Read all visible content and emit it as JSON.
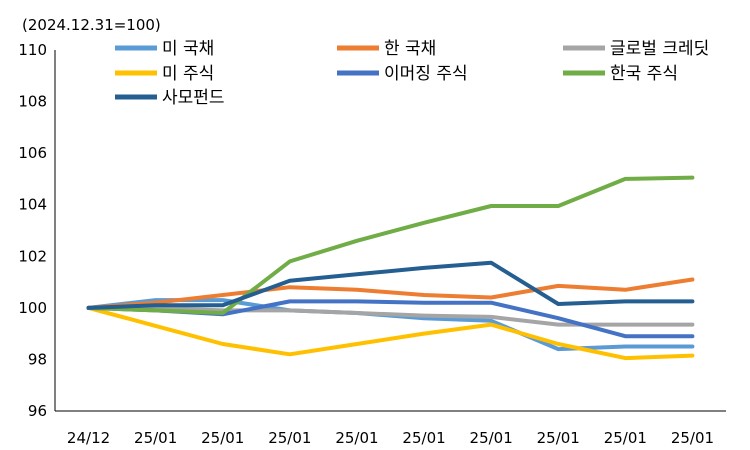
{
  "chart_data": {
    "type": "line",
    "title": "",
    "unit_label": "(2024.12.31=100)",
    "xlabel": "",
    "ylabel": "",
    "categories": [
      "24/12",
      "25/01",
      "25/01",
      "25/01",
      "25/01",
      "25/01",
      "25/01",
      "25/01",
      "25/01",
      "25/01"
    ],
    "ylim": [
      96,
      110
    ],
    "yticks": [
      96,
      98,
      100,
      102,
      104,
      106,
      108,
      110
    ],
    "grid": false,
    "series": [
      {
        "name": "미 국채",
        "color": "#5B9BD5",
        "values": [
          100,
          100.3,
          100.3,
          99.9,
          99.8,
          99.6,
          99.5,
          98.4,
          98.5,
          98.5
        ]
      },
      {
        "name": "한 국채",
        "color": "#ED7D31",
        "values": [
          100,
          100.2,
          100.5,
          100.8,
          100.7,
          100.5,
          100.4,
          100.85,
          100.7,
          101.1
        ]
      },
      {
        "name": "글로벌 크레딧",
        "color": "#A5A5A5",
        "values": [
          100,
          100.0,
          99.9,
          99.9,
          99.8,
          99.7,
          99.65,
          99.35,
          99.35,
          99.35
        ]
      },
      {
        "name": "미 주식",
        "color": "#FFC000",
        "values": [
          100,
          99.3,
          98.6,
          98.2,
          98.6,
          99.0,
          99.35,
          98.6,
          98.05,
          98.15
        ]
      },
      {
        "name": "이머징 주식",
        "color": "#4472C4",
        "values": [
          100,
          99.9,
          99.75,
          100.25,
          100.25,
          100.2,
          100.2,
          99.6,
          98.9,
          98.9
        ]
      },
      {
        "name": "한국 주식",
        "color": "#70AD47",
        "values": [
          100,
          99.9,
          99.8,
          101.8,
          102.6,
          103.3,
          103.95,
          103.95,
          105.0,
          105.05
        ]
      },
      {
        "name": "사모펀드",
        "color": "#255E91",
        "values": [
          100,
          100.1,
          100.1,
          101.05,
          101.3,
          101.55,
          101.75,
          100.15,
          100.25,
          100.25
        ]
      }
    ],
    "legend": {
      "placement": "top",
      "columns": 3,
      "order": [
        "미 국채",
        "한 국채",
        "글로벌 크레딧",
        "미 주식",
        "이머징 주식",
        "한국 주식",
        "사모펀드"
      ]
    }
  }
}
